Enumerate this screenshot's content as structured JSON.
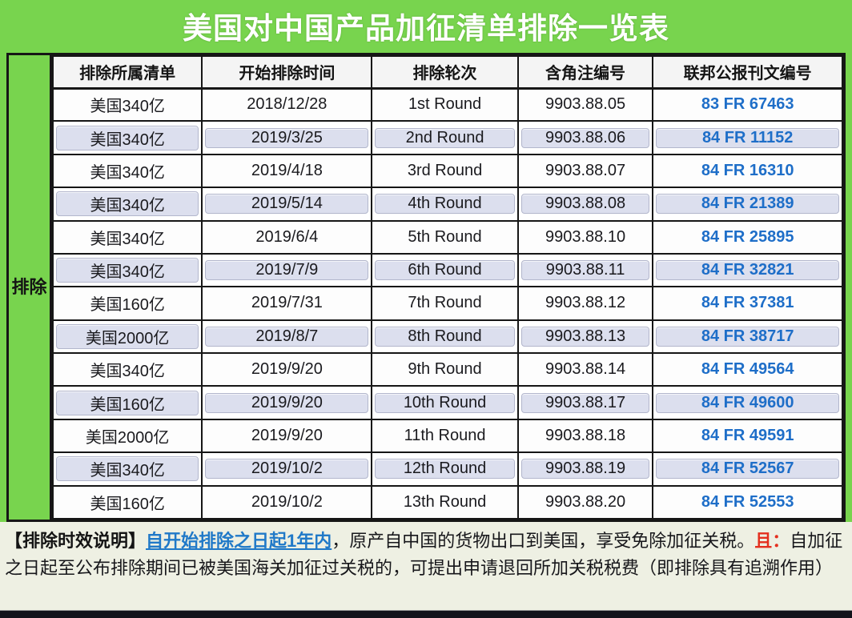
{
  "title": "美国对中国产品加征清单排除一览表",
  "side_label": "排除",
  "table": {
    "headers": [
      "排除所属清单",
      "开始排除时间",
      "排除轮次",
      "含角注编号",
      "联邦公报刊文编号"
    ],
    "rows": [
      {
        "list": "美国340亿",
        "start_date": "2018/12/28",
        "round": "1st Round",
        "footnote": "9903.88.05",
        "fr": "83 FR 67463"
      },
      {
        "list": "美国340亿",
        "start_date": "2019/3/25",
        "round": "2nd Round",
        "footnote": "9903.88.06",
        "fr": "84 FR 11152"
      },
      {
        "list": "美国340亿",
        "start_date": "2019/4/18",
        "round": "3rd Round",
        "footnote": "9903.88.07",
        "fr": "84 FR 16310"
      },
      {
        "list": "美国340亿",
        "start_date": "2019/5/14",
        "round": "4th Round",
        "footnote": "9903.88.08",
        "fr": "84 FR 21389"
      },
      {
        "list": "美国340亿",
        "start_date": "2019/6/4",
        "round": "5th Round",
        "footnote": "9903.88.10",
        "fr": "84 FR 25895"
      },
      {
        "list": "美国340亿",
        "start_date": "2019/7/9",
        "round": "6th Round",
        "footnote": "9903.88.11",
        "fr": "84 FR 32821"
      },
      {
        "list": "美国160亿",
        "start_date": "2019/7/31",
        "round": "7th Round",
        "footnote": "9903.88.12",
        "fr": "84 FR 37381"
      },
      {
        "list": "美国2000亿",
        "start_date": "2019/8/7",
        "round": "8th Round",
        "footnote": "9903.88.13",
        "fr": "84 FR 38717"
      },
      {
        "list": "美国340亿",
        "start_date": "2019/9/20",
        "round": "9th Round",
        "footnote": "9903.88.14",
        "fr": "84 FR 49564"
      },
      {
        "list": "美国160亿",
        "start_date": "2019/9/20",
        "round": "10th Round",
        "footnote": "9903.88.17",
        "fr": "84 FR 49600"
      },
      {
        "list": "美国2000亿",
        "start_date": "2019/9/20",
        "round": "11th Round",
        "footnote": "9903.88.18",
        "fr": "84 FR 49591"
      },
      {
        "list": "美国340亿",
        "start_date": "2019/10/2",
        "round": "12th Round",
        "footnote": "9903.88.19",
        "fr": "84 FR 52567"
      },
      {
        "list": "美国160亿",
        "start_date": "2019/10/2",
        "round": "13th Round",
        "footnote": "9903.88.20",
        "fr": "84 FR 52553"
      }
    ]
  },
  "note": {
    "label": "【排除时效说明】",
    "link": "自开始排除之日起1年内",
    "body1": "，原产自中国的货物出口到美国，享受免除加征关税。",
    "highlight": "且：",
    "body2": "自加征之日起至公布排除期间已被美国海关加征过关税的，可提出申请退回所加关税税费（即排除具有追溯作用）"
  },
  "colors": {
    "frame_green": "#78d44e",
    "title_text": "#ffffff",
    "grid_border": "#161616",
    "alt_row": "#dcdfee",
    "link_blue": "#1e6ec8",
    "note_bg": "#eef0e3",
    "highlight_red": "#e42f1e",
    "bottom_bar": "#13131b"
  }
}
